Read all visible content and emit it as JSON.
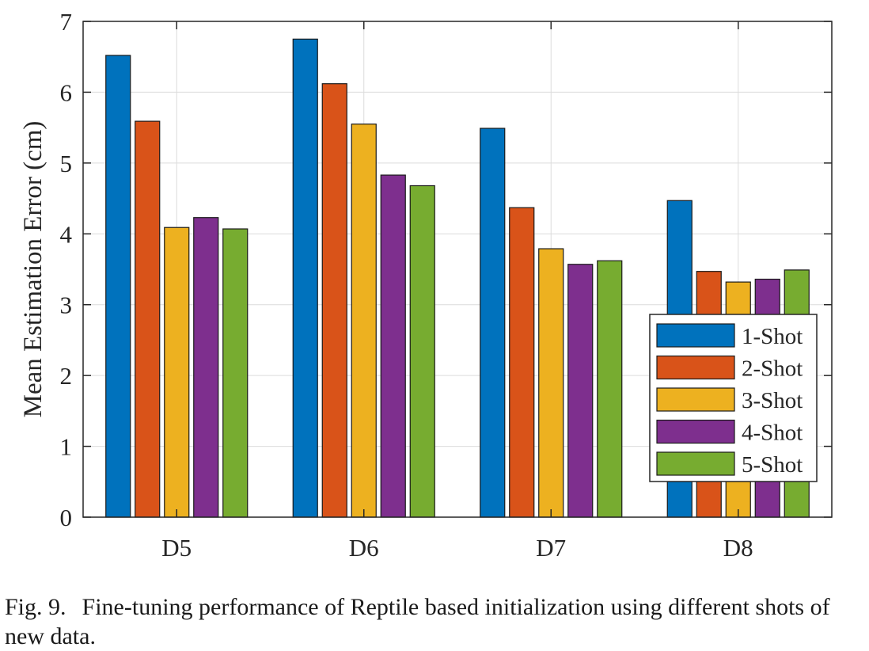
{
  "chart_data": {
    "type": "bar",
    "categories": [
      "D5",
      "D6",
      "D7",
      "D8"
    ],
    "series": [
      {
        "name": "1-Shot",
        "values": [
          6.52,
          6.75,
          5.49,
          4.47
        ],
        "color": "#0072BD"
      },
      {
        "name": "2-Shot",
        "values": [
          5.59,
          6.12,
          4.37,
          3.47
        ],
        "color": "#D95319"
      },
      {
        "name": "3-Shot",
        "values": [
          4.09,
          5.55,
          3.79,
          3.32
        ],
        "color": "#EDB120"
      },
      {
        "name": "4-Shot",
        "values": [
          4.23,
          4.83,
          3.57,
          3.36
        ],
        "color": "#7E2F8E"
      },
      {
        "name": "5-Shot",
        "values": [
          4.07,
          4.68,
          3.62,
          3.49
        ],
        "color": "#77AC30"
      }
    ],
    "title": "",
    "xlabel": "",
    "ylabel": "Mean Estimation Error (cm)",
    "ylim": [
      0,
      7
    ],
    "yticks": [
      0,
      1,
      2,
      3,
      4,
      5,
      6,
      7
    ],
    "grid": true,
    "legend_position": "lower-right"
  },
  "caption": {
    "label": "Fig. 9.",
    "text": "Fine-tuning performance of Reptile based initialization using different shots of new data."
  }
}
